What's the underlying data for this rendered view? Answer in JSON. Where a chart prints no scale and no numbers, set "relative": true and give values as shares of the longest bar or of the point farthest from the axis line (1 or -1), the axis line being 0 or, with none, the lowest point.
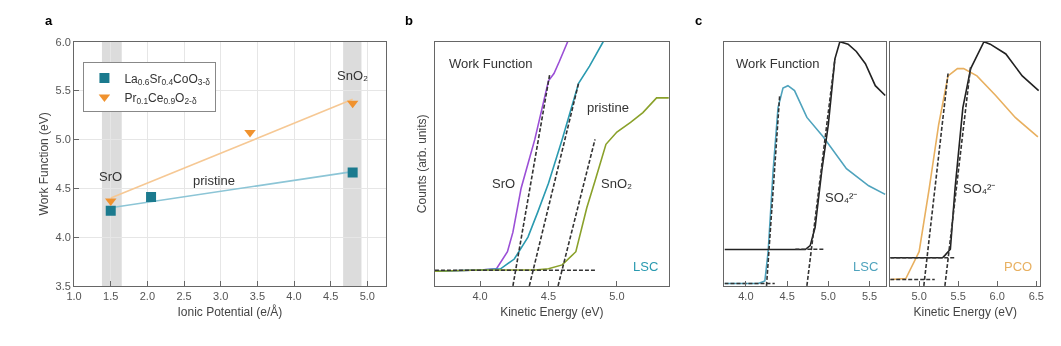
{
  "chart_data": [
    {
      "type": "scatter",
      "title": "a",
      "xlabel": "Ionic Potential (e/Å)",
      "ylabel": "Work Function (eV)",
      "xlim": [
        1.0,
        5.25
      ],
      "ylim": [
        3.5,
        6.0
      ],
      "xticks": [
        {
          "value": 1,
          "label": "1.0"
        },
        1.5,
        {
          "value": 2,
          "label": "2.0"
        },
        2.5,
        {
          "value": 3,
          "label": "3.0"
        },
        3.5,
        {
          "value": 4,
          "label": "4.0"
        },
        4.5,
        {
          "value": 5,
          "label": "5.0"
        }
      ],
      "yticks": [
        3.5,
        {
          "value": 4,
          "label": "4.0"
        },
        4.5,
        {
          "value": 5,
          "label": "5.0"
        },
        5.5,
        {
          "value": 6,
          "label": "6.0"
        }
      ],
      "grid": true,
      "legend": "top left",
      "bands": [
        {
          "axis": "x",
          "from": 1.38,
          "to": 1.65,
          "color": "#dcdcdc"
        },
        {
          "axis": "x",
          "from": 4.67,
          "to": 4.92,
          "color": "#dcdcdc"
        }
      ],
      "annotations": [
        "SrO",
        "SnO₂",
        "pristine"
      ],
      "series": [
        {
          "type": "line",
          "color": "#8cc5d6",
          "x": [
            1.5,
            4.8
          ],
          "values": [
            4.3,
            4.67
          ]
        },
        {
          "type": "line",
          "color": "#f6c894",
          "x": [
            1.5,
            4.8
          ],
          "values": [
            4.4,
            5.41
          ]
        },
        {
          "name": "La$_{0.6}$Sr$_{0.4}$CoO$_{3-δ}$",
          "color": "#1b7a8e",
          "marker": "square",
          "x": [
            1.5,
            2.05,
            4.8
          ],
          "values": [
            4.27,
            4.41,
            4.66
          ]
        },
        {
          "name": "Pr$_{0.1}$Ce$_{0.9}$O$_{2-δ}$",
          "color": "#f0922e",
          "marker": "triangle",
          "x": [
            1.5,
            3.4,
            4.8
          ],
          "values": [
            4.37,
            5.07,
            5.37
          ]
        }
      ]
    },
    {
      "type": "line",
      "title": "b",
      "xlabel": "Kinetic Energy (eV)",
      "ylabel": "Counts (arb. units)",
      "relative": true,
      "xlim": [
        3.67,
        5.38
      ],
      "xticks": [
        {
          "value": 4,
          "label": "4.0"
        },
        4.5,
        {
          "value": 5,
          "label": "5.0"
        }
      ],
      "annotations": [
        "Work Function",
        "SrO",
        "SnO₂",
        "pristine"
      ],
      "series": [
        {
          "color": "#9b4fd6",
          "x": [
            3.67,
            4.0,
            4.12,
            4.2,
            4.24,
            4.3,
            4.4,
            4.5,
            4.54,
            4.58,
            4.64
          ],
          "values": [
            0.06,
            0.065,
            0.07,
            0.14,
            0.22,
            0.4,
            0.6,
            0.84,
            0.87,
            0.92,
            1.0
          ]
        },
        {
          "name": "LSC",
          "color": "#2a9ab0",
          "x": [
            3.67,
            4.0,
            4.15,
            4.25,
            4.35,
            4.42,
            4.5,
            4.6,
            4.72,
            4.8,
            4.9
          ],
          "values": [
            0.06,
            0.065,
            0.07,
            0.11,
            0.2,
            0.3,
            0.42,
            0.6,
            0.83,
            0.9,
            1.0
          ]
        },
        {
          "color": "#8aa12a",
          "x": [
            3.67,
            4.0,
            4.4,
            4.5,
            4.6,
            4.7,
            4.78,
            4.84,
            4.92,
            5.0,
            5.1,
            5.19,
            5.29,
            5.38
          ],
          "values": [
            0.06,
            0.065,
            0.065,
            0.07,
            0.086,
            0.14,
            0.32,
            0.43,
            0.58,
            0.63,
            0.67,
            0.71,
            0.77,
            0.77
          ]
        },
        {
          "color": "#333333",
          "line_style": "dashed",
          "x": [
            3.67,
            4.84
          ],
          "values": [
            0.064,
            0.064
          ]
        },
        {
          "color": "#333333",
          "line_style": "dashed",
          "x": [
            4.24,
            4.51
          ],
          "values": [
            0,
            0.87
          ]
        },
        {
          "color": "#333333",
          "line_style": "dashed",
          "x": [
            4.36,
            4.72
          ],
          "values": [
            0,
            0.83
          ]
        },
        {
          "color": "#333333",
          "line_style": "dashed",
          "x": [
            4.57,
            4.84
          ],
          "values": [
            0,
            0.6
          ]
        }
      ]
    },
    {
      "type": "line",
      "title": "c",
      "relative": true,
      "xlim": [
        3.74,
        5.7
      ],
      "xticks": [
        {
          "value": 4,
          "label": "4.0"
        },
        4.5,
        {
          "value": 5,
          "label": "5.0"
        },
        5.5
      ],
      "annotations": [
        "Work Function",
        "SO₄²⁻"
      ],
      "series": [
        {
          "name": "LSC",
          "color": "#4fa3bd",
          "x": [
            3.74,
            4.15,
            4.23,
            4.27,
            4.33,
            4.39,
            4.45,
            4.51,
            4.59,
            4.74,
            4.94,
            5.22,
            5.49,
            5.69
          ],
          "values": [
            0.01,
            0.01,
            0.02,
            0.14,
            0.47,
            0.73,
            0.81,
            0.82,
            0.8,
            0.69,
            0.61,
            0.48,
            0.41,
            0.375
          ]
        },
        {
          "color": "#222222",
          "x": [
            3.74,
            4.72,
            4.78,
            4.84,
            4.92,
            5.0,
            5.08,
            5.14,
            5.24,
            5.34,
            5.45,
            5.57,
            5.69
          ],
          "values": [
            0.149,
            0.149,
            0.165,
            0.24,
            0.47,
            0.66,
            0.93,
            1.0,
            0.99,
            0.96,
            0.91,
            0.82,
            0.78
          ]
        },
        {
          "color": "#333333",
          "line_style": "dashed",
          "x": [
            3.74,
            4.35
          ],
          "values": [
            0.01,
            0.01
          ]
        },
        {
          "color": "#333333",
          "line_style": "dashed",
          "x": [
            4.25,
            4.41
          ],
          "values": [
            0,
            0.78
          ]
        },
        {
          "color": "#333333",
          "line_style": "dashed",
          "x": [
            4.6,
            4.94
          ],
          "values": [
            0.15,
            0.15
          ]
        },
        {
          "color": "#333333",
          "line_style": "dashed",
          "x": [
            4.74,
            5.08
          ],
          "values": [
            0,
            0.93
          ]
        }
      ]
    },
    {
      "type": "line",
      "xlabel": "Kinetic Energy (eV)",
      "relative": true,
      "xlim": [
        4.63,
        6.55
      ],
      "xticks": [
        {
          "value": 5,
          "label": "5.0"
        },
        5.5,
        {
          "value": 6,
          "label": "6.0"
        },
        6.5
      ],
      "annotations": [
        "SO₄²⁻"
      ],
      "series": [
        {
          "name": "PCO",
          "color": "#e8b060",
          "x": [
            4.63,
            4.83,
            5.0,
            5.13,
            5.25,
            5.37,
            5.49,
            5.57,
            5.74,
            5.98,
            6.23,
            6.52
          ],
          "values": [
            0.026,
            0.03,
            0.14,
            0.4,
            0.66,
            0.86,
            0.89,
            0.89,
            0.86,
            0.78,
            0.69,
            0.61
          ]
        },
        {
          "color": "#222222",
          "x": [
            4.63,
            5.3,
            5.33,
            5.4,
            5.46,
            5.56,
            5.66,
            5.83,
            5.91,
            6.11,
            6.32,
            6.53
          ],
          "values": [
            0.115,
            0.115,
            0.125,
            0.15,
            0.4,
            0.73,
            0.89,
            1.0,
            0.99,
            0.95,
            0.86,
            0.8
          ]
        },
        {
          "color": "#333333",
          "line_style": "dashed",
          "x": [
            4.63,
            5.2
          ],
          "values": [
            0.026,
            0.026
          ]
        },
        {
          "color": "#333333",
          "line_style": "dashed",
          "x": [
            5.06,
            5.37
          ],
          "values": [
            0,
            0.87
          ]
        },
        {
          "color": "#333333",
          "line_style": "dashed",
          "x": [
            4.63,
            5.45
          ],
          "values": [
            0.115,
            0.115
          ]
        },
        {
          "color": "#333333",
          "line_style": "dashed",
          "x": [
            5.33,
            5.66
          ],
          "values": [
            0,
            0.9
          ]
        }
      ]
    }
  ]
}
